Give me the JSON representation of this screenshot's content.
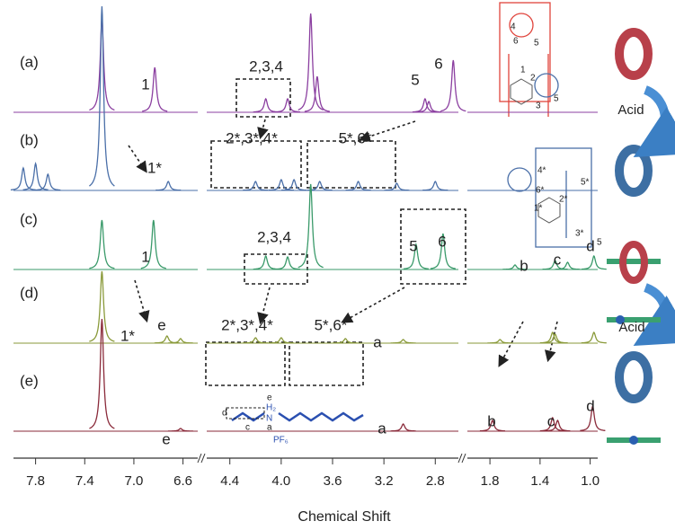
{
  "chart_data": {
    "type": "nmr",
    "x_label": "Chemical Shift",
    "xlims": [
      [
        7.98,
        6.48
      ],
      [
        4.58,
        2.62
      ],
      [
        1.98,
        0.94
      ]
    ],
    "xticks": [
      7.8,
      7.4,
      {
        "value": 7.0,
        "label": "7.0"
      },
      6.6,
      4.4,
      {
        "value": 4.0,
        "label": "4.0"
      },
      3.6,
      3.2,
      2.8,
      1.8,
      1.4,
      {
        "value": 1.0,
        "label": "1.0"
      }
    ],
    "series": [
      {
        "name": "(a)",
        "color": "#8b3fa0",
        "x": [
          7.26,
          6.83,
          4.12,
          3.95,
          3.77,
          3.72,
          2.88,
          2.85,
          2.66
        ],
        "values": [
          105,
          50,
          15,
          15,
          110,
          40,
          15,
          12,
          58
        ]
      },
      {
        "name": "(b)",
        "color": "#4a6fa8",
        "x": [
          7.9,
          7.8,
          7.7,
          7.26,
          6.72,
          4.2,
          4.0,
          3.9,
          3.7,
          3.4,
          3.1,
          2.8
        ],
        "values": [
          25,
          30,
          18,
          205,
          10,
          10,
          12,
          12,
          10,
          10,
          8,
          10
        ]
      },
      {
        "name": "(c)",
        "color": "#3a9a6a",
        "x": [
          7.26,
          6.84,
          4.12,
          3.95,
          3.77,
          2.95,
          2.74,
          1.6,
          1.28,
          1.18,
          0.97
        ],
        "values": [
          55,
          55,
          15,
          14,
          95,
          28,
          40,
          5,
          10,
          8,
          15
        ]
      },
      {
        "name": "(d)",
        "color": "#8a9a3a",
        "x": [
          7.26,
          6.73,
          6.62,
          4.2,
          4.0,
          3.5,
          3.05,
          1.72,
          1.3,
          1.28,
          0.97
        ],
        "values": [
          80,
          8,
          5,
          6,
          6,
          5,
          4,
          4,
          12,
          10,
          12
        ]
      },
      {
        "name": "(e)",
        "color": "#8a2a3a",
        "x": [
          7.26,
          6.62,
          3.05,
          1.78,
          1.3,
          1.26,
          0.98
        ],
        "values": [
          125,
          3,
          8,
          12,
          15,
          12,
          28
        ]
      }
    ],
    "annotations": [
      "1",
      "2,3,4",
      "5",
      "6",
      "1*",
      "2*,3*,4*",
      "5*,6*",
      "1",
      "2,3,4",
      "5",
      "6",
      "b",
      "c",
      "d",
      "2*,3*,4*",
      "5*,6*",
      "1*",
      "e",
      "a",
      "e",
      "a",
      "b",
      "c",
      "d",
      "Acid",
      "Acid"
    ],
    "red_structure_labels": [
      "4",
      "6",
      "5",
      "2",
      "1",
      "3",
      "5"
    ],
    "blue_structure_labels": [
      "4*",
      "6*",
      "5*",
      "2*",
      "1*",
      "3*",
      "5"
    ],
    "axle_labels": [
      "d",
      "c",
      "a",
      "e",
      "H₂",
      "N",
      "PF₆"
    ]
  }
}
